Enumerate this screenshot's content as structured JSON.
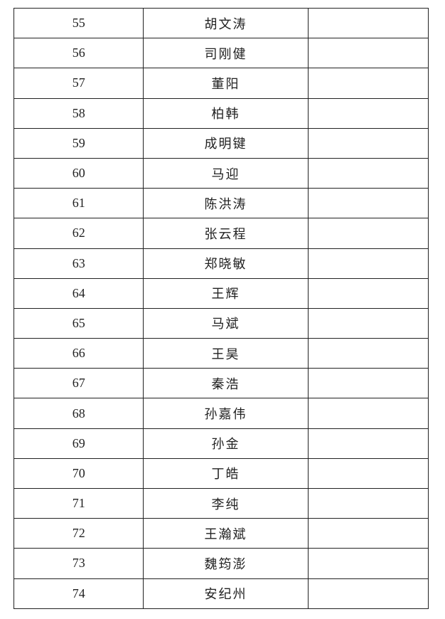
{
  "rows": [
    {
      "no": "55",
      "name": "胡文涛",
      "note": ""
    },
    {
      "no": "56",
      "name": "司刚健",
      "note": ""
    },
    {
      "no": "57",
      "name": "董阳",
      "note": ""
    },
    {
      "no": "58",
      "name": "柏韩",
      "note": ""
    },
    {
      "no": "59",
      "name": "成明键",
      "note": ""
    },
    {
      "no": "60",
      "name": "马迎",
      "note": ""
    },
    {
      "no": "61",
      "name": "陈洪涛",
      "note": ""
    },
    {
      "no": "62",
      "name": "张云程",
      "note": ""
    },
    {
      "no": "63",
      "name": "郑晓敏",
      "note": ""
    },
    {
      "no": "64",
      "name": "王辉",
      "note": ""
    },
    {
      "no": "65",
      "name": "马斌",
      "note": ""
    },
    {
      "no": "66",
      "name": "王昊",
      "note": ""
    },
    {
      "no": "67",
      "name": "秦浩",
      "note": ""
    },
    {
      "no": "68",
      "name": "孙嘉伟",
      "note": ""
    },
    {
      "no": "69",
      "name": "孙金",
      "note": ""
    },
    {
      "no": "70",
      "name": "丁皓",
      "note": ""
    },
    {
      "no": "71",
      "name": "李纯",
      "note": ""
    },
    {
      "no": "72",
      "name": "王瀚斌",
      "note": ""
    },
    {
      "no": "73",
      "name": "魏筠澎",
      "note": ""
    },
    {
      "no": "74",
      "name": "安纪州",
      "note": ""
    }
  ]
}
